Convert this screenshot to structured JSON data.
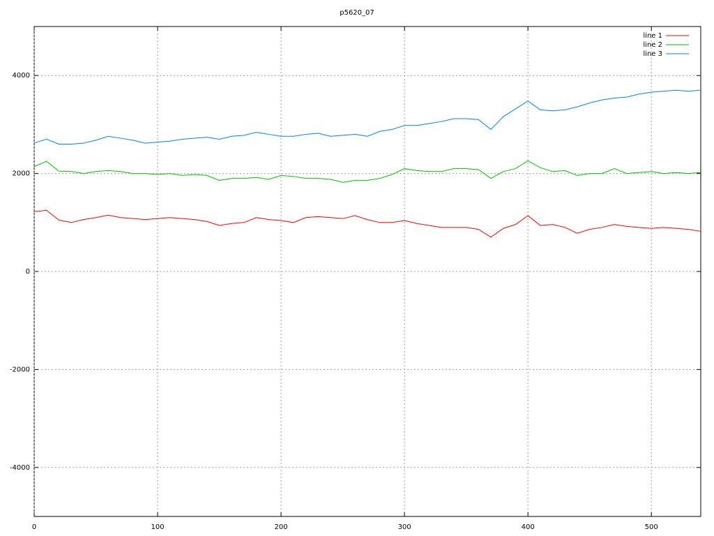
{
  "chart_data": {
    "type": "line",
    "title": "p5620_07",
    "x": [
      0,
      10,
      20,
      30,
      40,
      50,
      60,
      70,
      80,
      90,
      100,
      110,
      120,
      130,
      140,
      150,
      160,
      170,
      180,
      190,
      200,
      210,
      220,
      230,
      240,
      250,
      260,
      270,
      280,
      290,
      300,
      310,
      320,
      330,
      340,
      350,
      360,
      370,
      380,
      390,
      400,
      410,
      420,
      430,
      440,
      450,
      460,
      470,
      480,
      490,
      500,
      510,
      520,
      530,
      540
    ],
    "series": [
      {
        "name": "line 1",
        "color": "#ff0000",
        "values": [
          1220,
          1250,
          1050,
          1000,
          1060,
          1100,
          1150,
          1100,
          1080,
          1060,
          1080,
          1100,
          1080,
          1060,
          1020,
          940,
          980,
          1000,
          1100,
          1060,
          1040,
          1000,
          1100,
          1120,
          1100,
          1080,
          1140,
          1060,
          1000,
          1000,
          1040,
          980,
          940,
          900,
          900,
          900,
          860,
          700,
          880,
          960,
          1140,
          940,
          960,
          900,
          780,
          860,
          900,
          960,
          920,
          900,
          880,
          900,
          880,
          860,
          820
        ]
      },
      {
        "name": "line 2",
        "color": "#00c000",
        "values": [
          2140,
          2250,
          2050,
          2040,
          2000,
          2040,
          2060,
          2040,
          2000,
          2000,
          1980,
          2000,
          1960,
          1980,
          1960,
          1860,
          1900,
          1900,
          1920,
          1880,
          1960,
          1940,
          1900,
          1900,
          1880,
          1820,
          1860,
          1860,
          1900,
          1980,
          2100,
          2060,
          2040,
          2040,
          2100,
          2100,
          2080,
          1900,
          2040,
          2100,
          2260,
          2120,
          2040,
          2060,
          1960,
          2000,
          2000,
          2100,
          2000,
          2020,
          2040,
          2000,
          2020,
          2000,
          2020
        ]
      },
      {
        "name": "line 3",
        "color": "#0080ff",
        "values": [
          2620,
          2700,
          2600,
          2600,
          2620,
          2680,
          2760,
          2720,
          2680,
          2620,
          2640,
          2660,
          2700,
          2720,
          2740,
          2700,
          2760,
          2780,
          2840,
          2800,
          2760,
          2760,
          2800,
          2820,
          2760,
          2780,
          2800,
          2760,
          2860,
          2900,
          2980,
          2980,
          3020,
          3060,
          3120,
          3120,
          3100,
          2900,
          3160,
          3320,
          3480,
          3300,
          3280,
          3300,
          3360,
          3440,
          3500,
          3540,
          3560,
          3620,
          3660,
          3680,
          3700,
          3680,
          3700
        ]
      }
    ],
    "xlim": [
      0,
      540
    ],
    "ylim": [
      -5000,
      5000
    ],
    "xticks": [
      0,
      100,
      200,
      300,
      400,
      500
    ],
    "yticks": [
      -4000,
      -2000,
      0,
      2000,
      4000
    ],
    "grid": true,
    "legend": "top-right"
  }
}
